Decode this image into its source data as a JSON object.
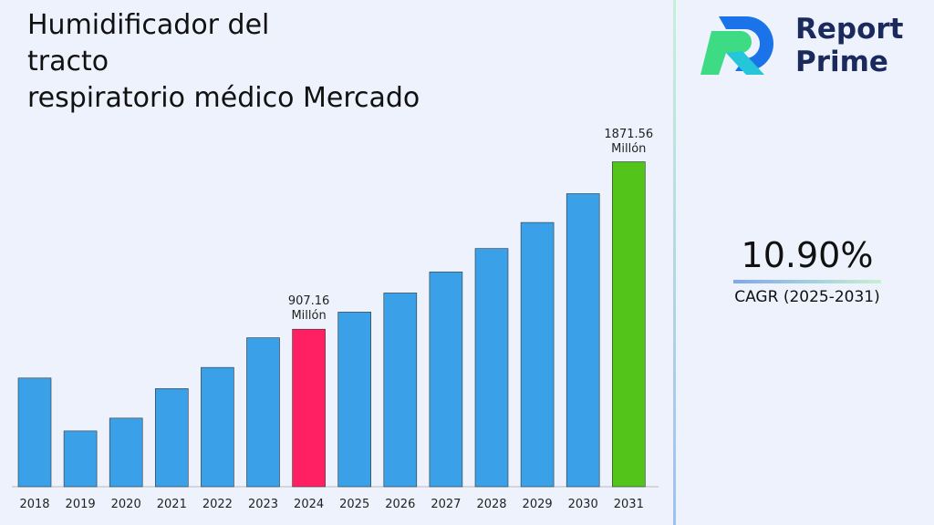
{
  "chart_data": {
    "type": "bar",
    "title": "Humidificador del\ntracto\nrespiratorio médico Mercado",
    "categories": [
      "2018",
      "2019",
      "2020",
      "2021",
      "2022",
      "2023",
      "2024",
      "2025",
      "2026",
      "2027",
      "2028",
      "2029",
      "2030",
      "2031"
    ],
    "values": [
      626,
      321,
      395,
      565,
      687,
      858,
      907.16,
      1006,
      1116,
      1237,
      1372,
      1522,
      1688,
      1871.56
    ],
    "value_labels": [
      null,
      null,
      null,
      null,
      null,
      null,
      "907.16 Millón",
      null,
      null,
      null,
      null,
      null,
      null,
      "1871.56 Millón"
    ],
    "colors": [
      "#3aa0e8",
      "#3aa0e8",
      "#3aa0e8",
      "#3aa0e8",
      "#3aa0e8",
      "#3aa0e8",
      "#ff1f63",
      "#3aa0e8",
      "#3aa0e8",
      "#3aa0e8",
      "#3aa0e8",
      "#3aa0e8",
      "#3aa0e8",
      "#52c41a"
    ],
    "ylim": [
      0,
      2100
    ]
  },
  "brand": "Report\nPrime",
  "cagr": {
    "value": "10.90%",
    "label": "CAGR (2025-2031)"
  }
}
